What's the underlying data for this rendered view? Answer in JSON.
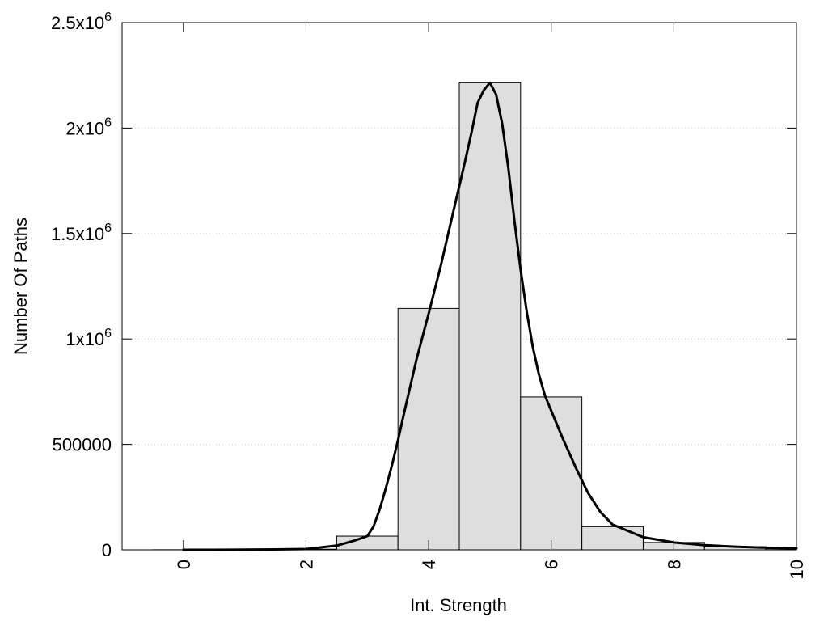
{
  "chart_data": {
    "type": "bar",
    "xlabel": "Int. Strength",
    "ylabel": "Number Of Paths",
    "xlim": [
      -1,
      10
    ],
    "ylim": [
      0,
      2500000
    ],
    "grid": true,
    "bar_width": 1,
    "x_ticks": [
      0,
      2,
      4,
      6,
      8,
      10
    ],
    "x_tick_labels": [
      "0",
      "2",
      "4",
      "6",
      "8",
      "10"
    ],
    "y_ticks": [
      0,
      500000,
      1000000,
      1500000,
      2000000,
      2500000
    ],
    "y_tick_labels": [
      {
        "base": "0",
        "exp": ""
      },
      {
        "base": "500000",
        "exp": ""
      },
      {
        "base": "1x10",
        "exp": "6"
      },
      {
        "base": "1.5x10",
        "exp": "6"
      },
      {
        "base": "2x10",
        "exp": "6"
      },
      {
        "base": "2.5x10",
        "exp": "6"
      }
    ],
    "series": [
      {
        "kind": "bar",
        "x": [
          0,
          1,
          2,
          3,
          4,
          5,
          6,
          7,
          8,
          9,
          10
        ],
        "values": [
          500,
          1000,
          3000,
          65000,
          1145000,
          2215000,
          725000,
          110000,
          35000,
          15000,
          5000
        ]
      },
      {
        "kind": "line",
        "x": [
          0,
          0.5,
          1,
          1.5,
          2,
          2.5,
          2.8,
          3,
          3.1,
          3.2,
          3.3,
          3.4,
          3.5,
          3.6,
          3.8,
          4,
          4.2,
          4.4,
          4.6,
          4.7,
          4.8,
          4.9,
          5,
          5.1,
          5.2,
          5.3,
          5.4,
          5.5,
          5.6,
          5.7,
          5.8,
          5.9,
          6,
          6.2,
          6.4,
          6.6,
          6.8,
          7,
          7.5,
          8,
          8.5,
          9,
          9.5,
          10
        ],
        "values": [
          0,
          0,
          1000,
          2000,
          4000,
          20000,
          45000,
          65000,
          110000,
          190000,
          290000,
          400000,
          520000,
          650000,
          900000,
          1120000,
          1350000,
          1600000,
          1850000,
          1980000,
          2120000,
          2180000,
          2215000,
          2160000,
          2020000,
          1810000,
          1560000,
          1330000,
          1130000,
          960000,
          830000,
          730000,
          660000,
          520000,
          390000,
          270000,
          180000,
          120000,
          60000,
          35000,
          22000,
          15000,
          10000,
          7000
        ]
      }
    ]
  }
}
